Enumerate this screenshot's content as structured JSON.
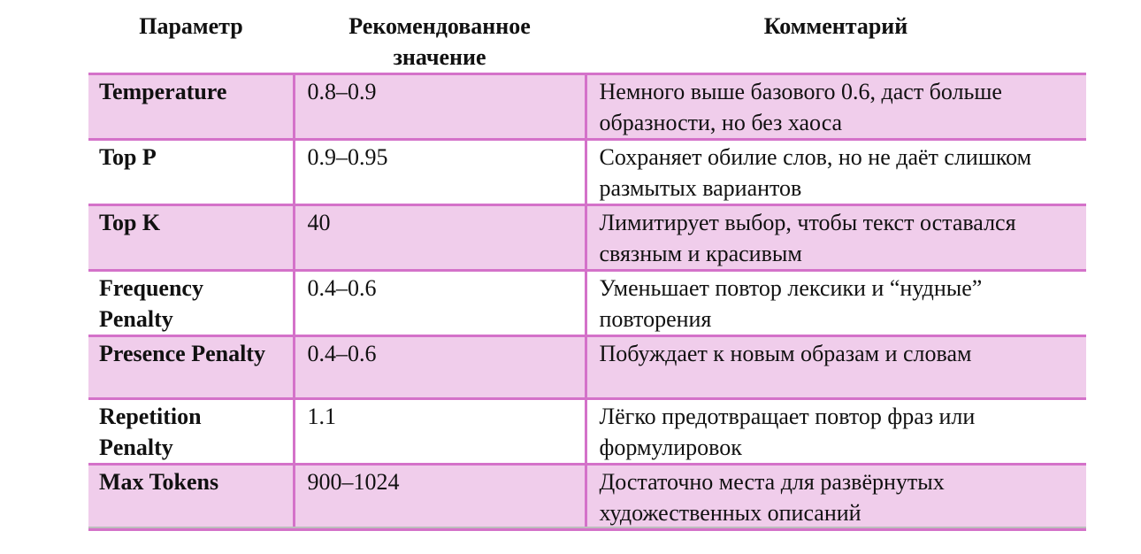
{
  "headers": [
    "Параметр",
    "Рекомендованное значение",
    "Комментарий"
  ],
  "rows": [
    {
      "param": "Temperature",
      "value": "0.8–0.9",
      "comment": "Немного выше базового 0.6, даст больше образности, но без хаоса"
    },
    {
      "param": "Top P",
      "value": "0.9–0.95",
      "comment": "Сохраняет обилие слов, но не даёт слишком размытых вариантов"
    },
    {
      "param": "Top K",
      "value": "40",
      "comment": "Лимитирует выбор, чтобы текст оставался связным и красивым"
    },
    {
      "param": "Frequency Penalty",
      "value": "0.4–0.6",
      "comment": "Уменьшает повтор лексики и “нудные” повторения"
    },
    {
      "param": "Presence Penalty",
      "value": "0.4–0.6",
      "comment": "Побуждает к новым образам и словам"
    },
    {
      "param": "Repetition Penalty",
      "value": "1.1",
      "comment": "Лёгко предотвращает повтор фраз или формулировок"
    },
    {
      "param": "Max Tokens",
      "value": "900–1024",
      "comment": "Достаточно места для развёрнутых художественных описаний"
    }
  ],
  "colors": {
    "row_fill": "#f0cdeb",
    "border": "#d472c9",
    "rule": "#bdbdbd"
  }
}
